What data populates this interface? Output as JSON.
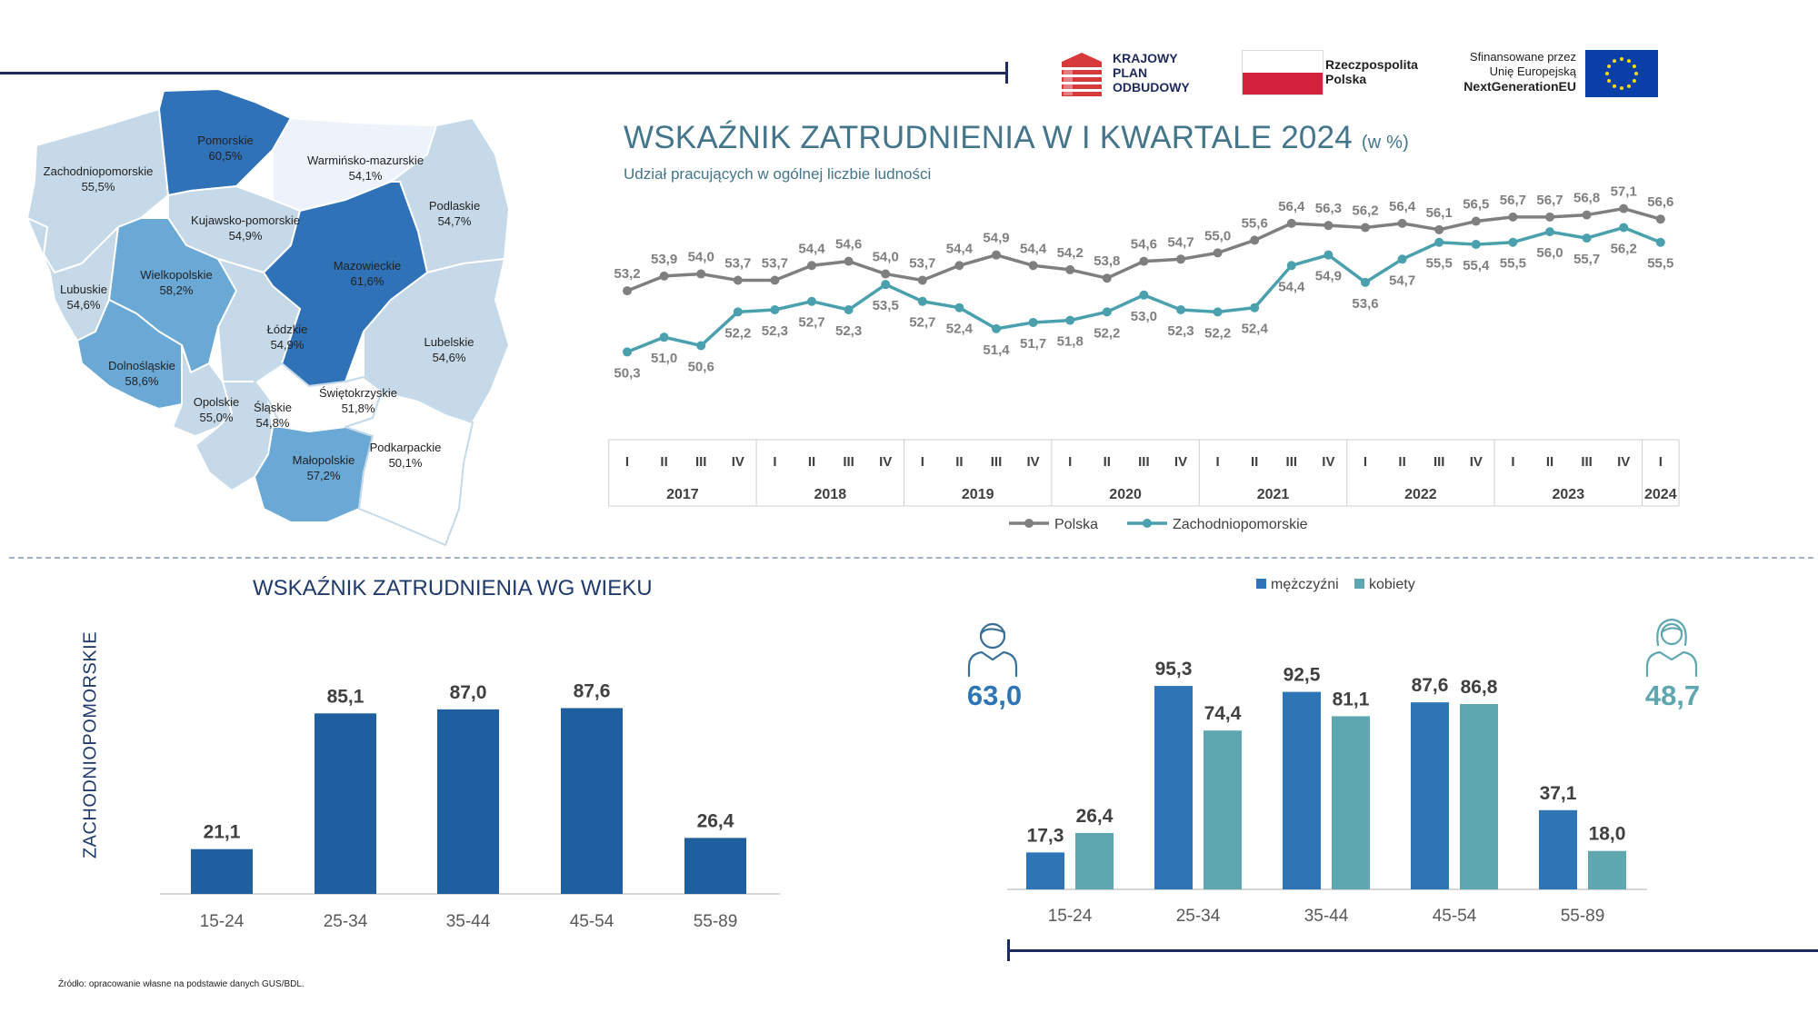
{
  "logos": {
    "kpo": [
      "KRAJOWY",
      "PLAN",
      "ODBUDOWY"
    ],
    "rp": [
      "Rzeczpospolita",
      "Polska"
    ],
    "eu": [
      "Sfinansowane przez",
      "Unię Europejską",
      "NextGenerationEU"
    ]
  },
  "colors": {
    "polska_line": "#7f7f7f",
    "zachodniopomorskie_line": "#4aa0ad",
    "age_bar": "#1f5fa0",
    "men_bar": "#2e75b6",
    "women_bar": "#5ea6b0",
    "title": "#44758a",
    "dark_navy": "#1f2a5c"
  },
  "map": {
    "regions": [
      {
        "name": "Zachodniopomorskie",
        "value": "55,5%",
        "fill": "#c5d9e8"
      },
      {
        "name": "Pomorskie",
        "value": "60,5%",
        "fill": "#2f72b8"
      },
      {
        "name": "Warmińsko-mazurskie",
        "value": "54,1%",
        "fill": "#eef3fb"
      },
      {
        "name": "Podlaskie",
        "value": "54,7%",
        "fill": "#c5d9e8"
      },
      {
        "name": "Kujawsko-pomorskie",
        "value": "54,9%",
        "fill": "#c5d9e8"
      },
      {
        "name": "Mazowieckie",
        "value": "61,6%",
        "fill": "#2f72b8"
      },
      {
        "name": "Lubuskie",
        "value": "54,6%",
        "fill": "#c5d9e8"
      },
      {
        "name": "Wielkopolskie",
        "value": "58,2%",
        "fill": "#6aa8d5"
      },
      {
        "name": "Łódzkie",
        "value": "54,9%",
        "fill": "#c5d9e8"
      },
      {
        "name": "Lubelskie",
        "value": "54,6%",
        "fill": "#c5d9e8"
      },
      {
        "name": "Dolnośląskie",
        "value": "58,6%",
        "fill": "#6aa8d5"
      },
      {
        "name": "Opolskie",
        "value": "55,0%",
        "fill": "#c5d9e8"
      },
      {
        "name": "Śląskie",
        "value": "54,8%",
        "fill": "#c5d9e8"
      },
      {
        "name": "Świętokrzyskie",
        "value": "51,8%",
        "fill": "#ffffff"
      },
      {
        "name": "Małopolskie",
        "value": "57,2%",
        "fill": "#6aa8d5"
      },
      {
        "name": "Podkarpackie",
        "value": "50,1%",
        "fill": "#ffffff"
      }
    ]
  },
  "main_title": "WSKAŹNIK ZATRUDNIENIA W I KWARTALE 2024",
  "main_title_unit": "(w %)",
  "subtitle": "Udział pracujących w ogólnej liczbie ludności",
  "age_title": "WSKAŹNIK ZATRUDNIENIA WG WIEKU",
  "region_label": "ZACHODNIOPOMORSKIE",
  "men_total": "63,0",
  "women_total": "48,7",
  "source": "Źródło: opracowanie własne na podstawie danych GUS/BDL.",
  "chart_data": [
    {
      "type": "line",
      "quarters": [
        "I",
        "II",
        "III",
        "IV",
        "I",
        "II",
        "III",
        "IV",
        "I",
        "II",
        "III",
        "IV",
        "I",
        "II",
        "III",
        "IV",
        "I",
        "II",
        "III",
        "IV",
        "I",
        "II",
        "III",
        "IV",
        "I",
        "II",
        "III",
        "IV",
        "I"
      ],
      "years": [
        {
          "label": "2017",
          "count": 4
        },
        {
          "label": "2018",
          "count": 4
        },
        {
          "label": "2019",
          "count": 4
        },
        {
          "label": "2020",
          "count": 4
        },
        {
          "label": "2021",
          "count": 4
        },
        {
          "label": "2022",
          "count": 4
        },
        {
          "label": "2023",
          "count": 4
        },
        {
          "label": "2024",
          "count": 1
        }
      ],
      "series": [
        {
          "name": "Polska",
          "values": [
            53.2,
            53.9,
            54.0,
            53.7,
            53.7,
            54.4,
            54.6,
            54.0,
            53.7,
            54.4,
            54.9,
            54.4,
            54.2,
            53.8,
            54.6,
            54.7,
            55.0,
            55.6,
            56.4,
            56.3,
            56.2,
            56.4,
            56.1,
            56.5,
            56.7,
            56.7,
            56.8,
            57.1,
            56.6
          ]
        },
        {
          "name": "Zachodniopomorskie",
          "values": [
            50.3,
            51.0,
            50.6,
            52.2,
            52.3,
            52.7,
            52.3,
            53.5,
            52.7,
            52.4,
            51.4,
            51.7,
            51.8,
            52.2,
            53.0,
            52.3,
            52.2,
            52.4,
            54.4,
            54.9,
            53.6,
            54.7,
            55.5,
            55.4,
            55.5,
            56.0,
            55.7,
            56.2,
            55.5
          ]
        }
      ],
      "legend": "bottom"
    },
    {
      "type": "bar",
      "categories": [
        "15-24",
        "25-34",
        "35-44",
        "45-54",
        "55-89"
      ],
      "values": [
        21.1,
        85.1,
        87.0,
        87.6,
        26.4
      ]
    },
    {
      "type": "bar",
      "categories": [
        "15-24",
        "25-34",
        "35-44",
        "45-54",
        "55-89"
      ],
      "series": [
        {
          "name": "mężczyźni",
          "values": [
            17.3,
            95.3,
            92.5,
            87.6,
            37.1
          ]
        },
        {
          "name": "kobiety",
          "values": [
            26.4,
            74.4,
            81.1,
            86.8,
            18.0
          ]
        }
      ],
      "legend": "top"
    }
  ]
}
